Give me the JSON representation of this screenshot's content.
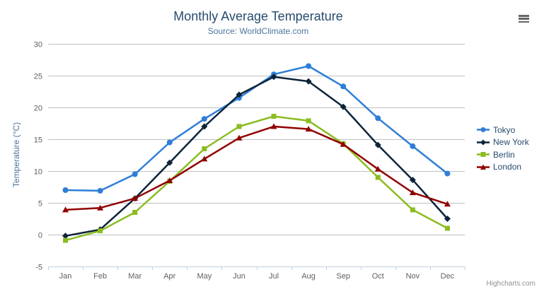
{
  "chart_data": {
    "type": "line",
    "title": "Monthly Average Temperature",
    "subtitle": "Source: WorldClimate.com",
    "xlabel": "",
    "ylabel": "Temperature (°C)",
    "categories": [
      "Jan",
      "Feb",
      "Mar",
      "Apr",
      "May",
      "Jun",
      "Jul",
      "Aug",
      "Sep",
      "Oct",
      "Nov",
      "Dec"
    ],
    "series": [
      {
        "name": "Tokyo",
        "marker": "circle",
        "color": "#2f7ed8",
        "values": [
          7.0,
          6.9,
          9.5,
          14.5,
          18.2,
          21.5,
          25.2,
          26.5,
          23.3,
          18.3,
          13.9,
          9.6
        ]
      },
      {
        "name": "New York",
        "marker": "diamond",
        "color": "#0d233a",
        "values": [
          -0.2,
          0.8,
          5.7,
          11.3,
          17.0,
          22.0,
          24.8,
          24.1,
          20.1,
          14.1,
          8.6,
          2.5
        ]
      },
      {
        "name": "Berlin",
        "marker": "square",
        "color": "#8bbc21",
        "values": [
          -0.9,
          0.6,
          3.5,
          8.4,
          13.5,
          17.0,
          18.6,
          17.9,
          14.3,
          9.0,
          3.9,
          1.0
        ]
      },
      {
        "name": "London",
        "marker": "triangle",
        "color": "#910000",
        "values": [
          3.9,
          4.2,
          5.7,
          8.5,
          11.9,
          15.2,
          17.0,
          16.6,
          14.2,
          10.3,
          6.6,
          4.8
        ]
      }
    ],
    "ylim": [
      -5,
      30
    ],
    "yticks": [
      -5,
      0,
      5,
      10,
      15,
      20,
      25,
      30
    ],
    "grid": true,
    "legend_position": "right",
    "credits": "Highcharts.com"
  },
  "icons": {
    "context_menu": "hamburger-icon"
  },
  "theme": {
    "background": "#ffffff",
    "title_color": "#274b6d",
    "subtitle_color": "#4d759e",
    "axis_label_color": "#606060",
    "axis_title_color": "#4d759e",
    "legend_text_color": "#274b6d",
    "grid_color": "#c0c0c0",
    "axis_line_color": "#c0d0e0",
    "credits_color": "#909090",
    "menu_icon_color": "#666666"
  }
}
